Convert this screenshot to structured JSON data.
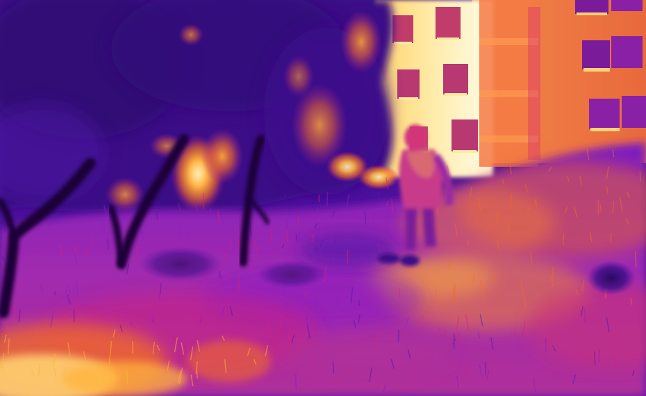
{
  "image": {
    "kind": "thermal-camera-photo",
    "palette": "ironbow",
    "palette_colors": {
      "coldest": "#2a0a5e",
      "cool": "#4a12a8",
      "mid": "#8a1fc4",
      "warm": "#d2237a",
      "hot": "#f06a2a",
      "hotter": "#ffb43c",
      "hottest": "#fff4c8"
    },
    "subjects": [
      "apartment-building",
      "trees",
      "person",
      "grass-field"
    ]
  }
}
